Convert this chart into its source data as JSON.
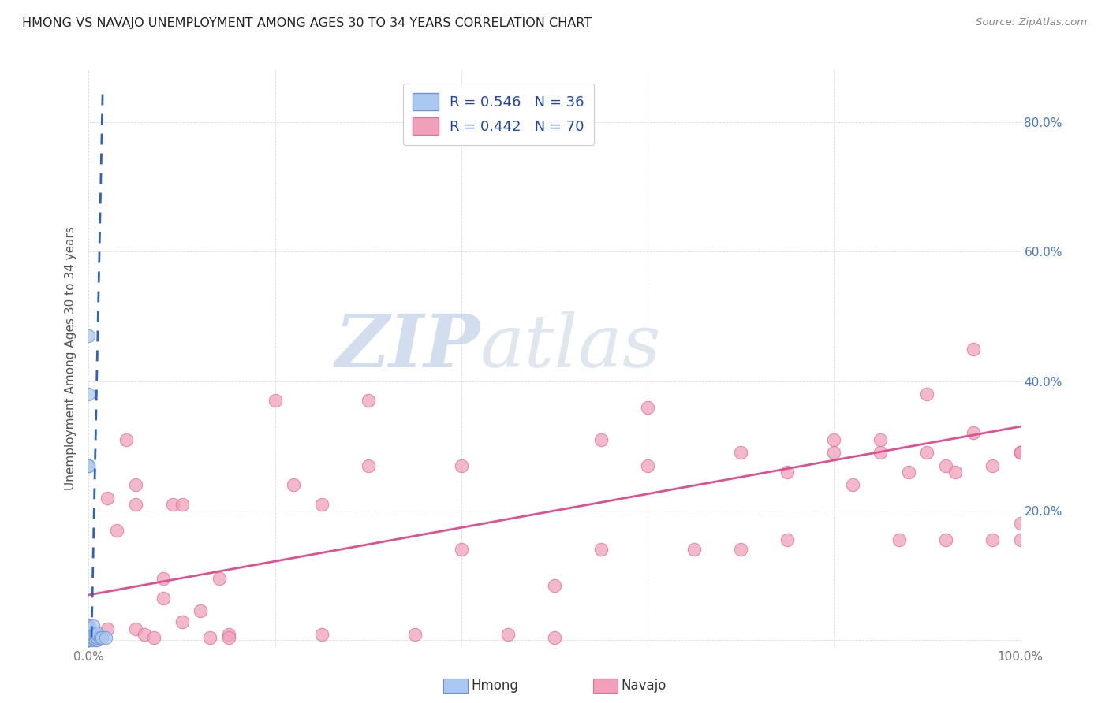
{
  "title": "HMONG VS NAVAJO UNEMPLOYMENT AMONG AGES 30 TO 34 YEARS CORRELATION CHART",
  "source": "Source: ZipAtlas.com",
  "ylabel": "Unemployment Among Ages 30 to 34 years",
  "xlim": [
    0,
    1.0
  ],
  "ylim": [
    -0.01,
    0.88
  ],
  "xtick_positions": [
    0.0,
    0.2,
    0.4,
    0.6,
    0.8,
    1.0
  ],
  "xticklabels_show": [
    "0.0%",
    "",
    "",
    "",
    "",
    "100.0%"
  ],
  "ytick_positions": [
    0.0,
    0.2,
    0.4,
    0.6,
    0.8
  ],
  "yticklabels_right": [
    "",
    "20.0%",
    "40.0%",
    "60.0%",
    "80.0%"
  ],
  "hmong_R": 0.546,
  "hmong_N": 36,
  "navajo_R": 0.442,
  "navajo_N": 70,
  "hmong_color": "#aac8f0",
  "navajo_color": "#f0a0b8",
  "hmong_edge_color": "#7090d0",
  "navajo_edge_color": "#e070a0",
  "hmong_line_color": "#3060c0",
  "navajo_line_color": "#e05090",
  "watermark_zip": "ZIP",
  "watermark_atlas": "atlas",
  "navajo_line_x0": 0.0,
  "navajo_line_x1": 1.0,
  "navajo_line_y0": 0.07,
  "navajo_line_y1": 0.33,
  "hmong_line_x0": 0.003,
  "hmong_line_x1": 0.015,
  "hmong_line_y0": 0.005,
  "hmong_line_y1": 0.85,
  "hmong_x": [
    0.0,
    0.0,
    0.0,
    0.0,
    0.0,
    0.0,
    0.0,
    0.0,
    0.0,
    0.0,
    0.0,
    0.0,
    0.0,
    0.0,
    0.0,
    0.0,
    0.0,
    0.0,
    0.0,
    0.0,
    0.0,
    0.0,
    0.004,
    0.004,
    0.005,
    0.005,
    0.007,
    0.007,
    0.009,
    0.009,
    0.009,
    0.009,
    0.009,
    0.012,
    0.014,
    0.018
  ],
  "hmong_y": [
    0.0,
    0.0,
    0.0,
    0.0,
    0.0,
    0.004,
    0.004,
    0.006,
    0.007,
    0.009,
    0.009,
    0.009,
    0.011,
    0.012,
    0.014,
    0.018,
    0.018,
    0.022,
    0.27,
    0.27,
    0.38,
    0.47,
    0.0,
    0.004,
    0.009,
    0.022,
    0.0,
    0.009,
    0.0,
    0.004,
    0.004,
    0.009,
    0.011,
    0.004,
    0.004,
    0.004
  ],
  "navajo_x": [
    0.0,
    0.0,
    0.0,
    0.0,
    0.0,
    0.0,
    0.0,
    0.0,
    0.0,
    0.02,
    0.02,
    0.03,
    0.04,
    0.05,
    0.05,
    0.05,
    0.06,
    0.07,
    0.08,
    0.08,
    0.09,
    0.1,
    0.1,
    0.12,
    0.13,
    0.14,
    0.15,
    0.15,
    0.2,
    0.22,
    0.25,
    0.25,
    0.3,
    0.3,
    0.35,
    0.4,
    0.4,
    0.45,
    0.5,
    0.5,
    0.55,
    0.55,
    0.6,
    0.6,
    0.65,
    0.7,
    0.7,
    0.75,
    0.75,
    0.8,
    0.8,
    0.82,
    0.85,
    0.85,
    0.87,
    0.88,
    0.9,
    0.9,
    0.92,
    0.92,
    0.93,
    0.95,
    0.95,
    0.97,
    0.97,
    1.0,
    1.0,
    1.0,
    1.0,
    1.0
  ],
  "navajo_y": [
    0.004,
    0.007,
    0.009,
    0.009,
    0.011,
    0.012,
    0.014,
    0.018,
    0.022,
    0.018,
    0.22,
    0.17,
    0.31,
    0.018,
    0.21,
    0.24,
    0.009,
    0.004,
    0.065,
    0.095,
    0.21,
    0.028,
    0.21,
    0.045,
    0.004,
    0.095,
    0.009,
    0.004,
    0.37,
    0.24,
    0.21,
    0.009,
    0.27,
    0.37,
    0.009,
    0.14,
    0.27,
    0.009,
    0.004,
    0.085,
    0.14,
    0.31,
    0.27,
    0.36,
    0.14,
    0.14,
    0.29,
    0.26,
    0.155,
    0.29,
    0.31,
    0.24,
    0.29,
    0.31,
    0.155,
    0.26,
    0.38,
    0.29,
    0.27,
    0.155,
    0.26,
    0.45,
    0.32,
    0.27,
    0.155,
    0.29,
    0.155,
    0.18,
    0.29,
    0.29
  ]
}
